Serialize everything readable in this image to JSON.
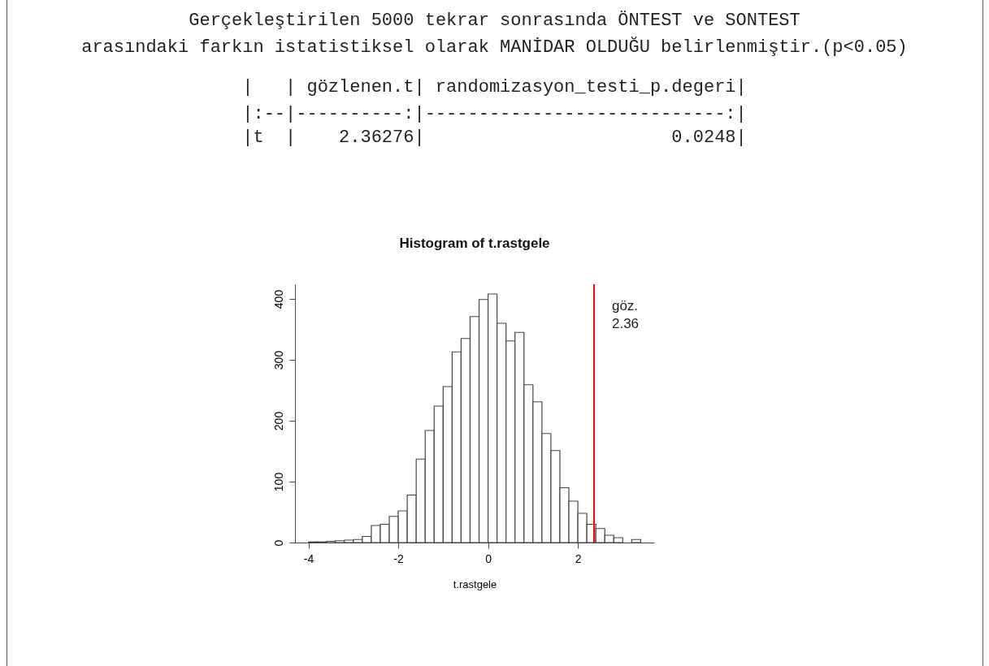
{
  "chart_data": {
    "type": "histogram",
    "title": "Histogram of t.rastgele",
    "xlabel": "t.rastgele",
    "annotations": [
      "Gerçekleştirilen 5000 tekrar sonrasında ÖNTEST ve SONTEST",
      "arasındaki farkın istatistiksel olarak MANİDAR OLDUĞU belirlenmiştir.(p<0.05)",
      "|   | gözlenen.t| randomizasyon_testi_p.degeri|",
      "|:--|----------:|----------------------------:|",
      "|t  |    2.36276|                       0.0248|"
    ],
    "bins": [
      -4,
      -3.8,
      -3.6,
      -3.4,
      -3.2,
      -3,
      -2.8,
      -2.6,
      -2.4,
      -2.2,
      -2,
      -1.8,
      -1.6,
      -1.4,
      -1.2,
      -1,
      -0.8,
      -0.6,
      -0.4,
      -0.2,
      0,
      0.2,
      0.4,
      0.6,
      0.8,
      1,
      1.2,
      1.4,
      1.6,
      1.8,
      2,
      2.2,
      2.4,
      2.6,
      2.8,
      3,
      3.2,
      3.4
    ],
    "values": [
      1,
      1,
      2,
      3,
      4,
      5,
      10,
      28,
      30,
      43,
      52,
      78,
      137,
      184,
      224,
      256,
      313,
      335,
      371,
      399,
      408,
      360,
      331,
      345,
      259,
      231,
      179,
      151,
      90,
      68,
      48,
      30,
      23,
      12,
      8,
      0,
      5
    ],
    "color": "#ffffff",
    "xlim": [
      -4.3,
      3.7
    ],
    "xticks": [
      -4,
      -2,
      0,
      2
    ],
    "ylim": [
      0,
      424
    ],
    "yticks": [
      0,
      100,
      200,
      300,
      400
    ],
    "ref_lines": [
      {
        "axis": "x",
        "value": 2.36,
        "label": "göz.\n2.36",
        "color": "#ff0000"
      }
    ]
  }
}
